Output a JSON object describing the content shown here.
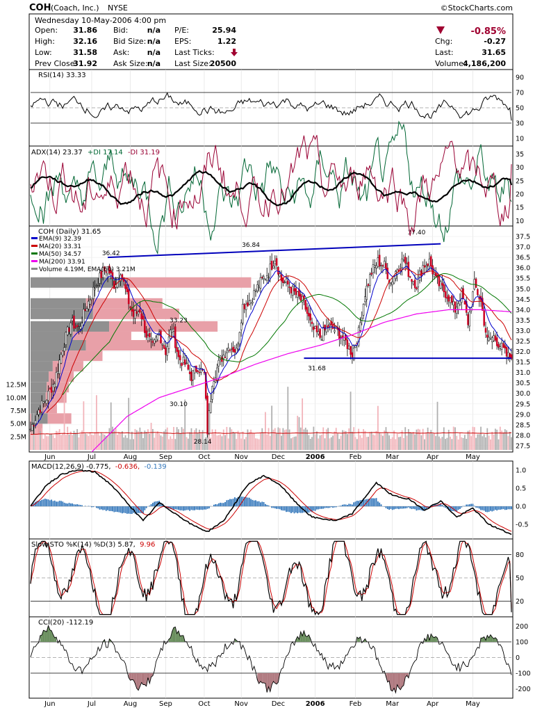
{
  "header": {
    "symbol": "COH",
    "company": "(Coach, Inc.)",
    "exchange": "NYSE",
    "copyright": "©StockCharts.com",
    "date": "Wednesday   10-May-2006  4:00 pm",
    "quote_col1": [
      [
        "Open:",
        "31.86"
      ],
      [
        "High:",
        "32.16"
      ],
      [
        "Low:",
        "31.58"
      ],
      [
        "Prev Close:",
        "31.92"
      ]
    ],
    "quote_col2": [
      [
        "Bid:",
        "n/a"
      ],
      [
        "Bid Size:",
        "n/a"
      ],
      [
        "Ask:",
        "n/a"
      ],
      [
        "Ask Size:",
        "n/a"
      ]
    ],
    "quote_col3": [
      [
        "P/E:",
        "25.94"
      ],
      [
        "EPS:",
        "1.22"
      ],
      [
        "Last Ticks:",
        ""
      ],
      [
        "Last Size:",
        "20500"
      ]
    ],
    "pct_change": "-0.85%",
    "quote_col4": [
      [
        "Chg:",
        "-0.27"
      ],
      [
        "Last:",
        "31.65"
      ],
      [
        "Volume:",
        "4,186,200"
      ]
    ],
    "down_color": "#a00030"
  },
  "panels": {
    "rsi_title": "RSI(14) 33.33",
    "adx": {
      "a": "ADX(14) 23.37",
      "b": "+DI 17.14",
      "c": "-DI 31.19"
    },
    "price_title": "COH (Daily) 31.65",
    "price_legend": [
      {
        "label": "EMA(9) 32.39",
        "color": "#0000cc"
      },
      {
        "label": "MA(20) 33.31",
        "color": "#cc0000"
      },
      {
        "label": "MA(50) 34.57",
        "color": "#007700"
      },
      {
        "label": "MA(200) 33.91",
        "color": "#ee00ee"
      },
      {
        "label": "Volume 4.19M, EMA(60) 3.21M",
        "color": "#888888"
      }
    ],
    "macd": {
      "a": "MACD(12,26,9) -0.775,",
      "b": "-0.636,",
      "c": "-0.139"
    },
    "sto": {
      "a": "Slow STO %K(14) %D(3) 5.87,",
      "b": "9.96"
    },
    "cci_title": "CCI(20) -112.19"
  },
  "x_labels": [
    "Jun",
    "Jul",
    "Aug",
    "Sep",
    "Oct",
    "Nov",
    "Dec",
    "2006",
    "Feb",
    "Mar",
    "Apr",
    "May"
  ],
  "annotations": [
    "36.42",
    "36.84",
    "37.40",
    "33.23",
    "30.10",
    "31.68",
    "28.14"
  ],
  "chart_data": {
    "type": "line",
    "title": "COH (Daily) 31.65",
    "x_labels": [
      "Jun",
      "Jul",
      "Aug",
      "Sep",
      "Oct",
      "Nov",
      "Dec",
      "2006",
      "Feb",
      "Mar",
      "Apr",
      "May"
    ],
    "price": {
      "ylim": [
        27.2,
        38.0
      ],
      "ticks": [
        "27.5",
        "28.0",
        "28.5",
        "29.0",
        "29.5",
        "30.0",
        "30.5",
        "31.0",
        "31.5",
        "32.0",
        "32.5",
        "33.0",
        "33.5",
        "34.0",
        "34.5",
        "35.0",
        "35.5",
        "36.0",
        "36.5",
        "37.0",
        "37.5"
      ],
      "close_anchors": [
        [
          0,
          28.3
        ],
        [
          5,
          29.2
        ],
        [
          10,
          29.8
        ],
        [
          15,
          30.6
        ],
        [
          20,
          32.2
        ],
        [
          25,
          33.4
        ],
        [
          30,
          33.1
        ],
        [
          35,
          34.2
        ],
        [
          40,
          35.1
        ],
        [
          45,
          35.8
        ],
        [
          48,
          36.0
        ],
        [
          52,
          35.2
        ],
        [
          56,
          35.9
        ],
        [
          60,
          34.6
        ],
        [
          64,
          33.7
        ],
        [
          68,
          34.0
        ],
        [
          72,
          32.8
        ],
        [
          76,
          32.2
        ],
        [
          80,
          32.9
        ],
        [
          84,
          32.0
        ],
        [
          88,
          33.2
        ],
        [
          92,
          31.7
        ],
        [
          96,
          31.4
        ],
        [
          100,
          30.8
        ],
        [
          104,
          31.3
        ],
        [
          108,
          30.9
        ],
        [
          110,
          28.2
        ],
        [
          113,
          30.6
        ],
        [
          118,
          31.6
        ],
        [
          124,
          32.3
        ],
        [
          128,
          32.0
        ],
        [
          132,
          34.2
        ],
        [
          137,
          34.5
        ],
        [
          142,
          35.2
        ],
        [
          148,
          35.8
        ],
        [
          152,
          36.5
        ],
        [
          156,
          35.4
        ],
        [
          160,
          35.2
        ],
        [
          164,
          34.8
        ],
        [
          170,
          34.3
        ],
        [
          175,
          33.1
        ],
        [
          180,
          32.7
        ],
        [
          185,
          33.2
        ],
        [
          190,
          33.0
        ],
        [
          195,
          32.6
        ],
        [
          200,
          31.9
        ],
        [
          204,
          32.9
        ],
        [
          208,
          34.8
        ],
        [
          212,
          35.8
        ],
        [
          216,
          36.3
        ],
        [
          220,
          36.1
        ],
        [
          224,
          35.3
        ],
        [
          228,
          36.0
        ],
        [
          232,
          36.4
        ],
        [
          236,
          35.6
        ],
        [
          240,
          35.2
        ],
        [
          244,
          36.1
        ],
        [
          248,
          36.3
        ],
        [
          252,
          35.4
        ],
        [
          256,
          35.0
        ],
        [
          260,
          34.6
        ],
        [
          264,
          34.0
        ],
        [
          268,
          34.8
        ],
        [
          272,
          33.4
        ],
        [
          276,
          35.2
        ],
        [
          280,
          34.4
        ],
        [
          284,
          32.5
        ],
        [
          288,
          32.7
        ],
        [
          292,
          32.3
        ],
        [
          296,
          31.8
        ],
        [
          299,
          31.65
        ]
      ],
      "ma200_anchors": [
        [
          38,
          27.2
        ],
        [
          60,
          28.9
        ],
        [
          80,
          29.8
        ],
        [
          100,
          30.3
        ],
        [
          120,
          30.8
        ],
        [
          140,
          31.4
        ],
        [
          160,
          31.9
        ],
        [
          180,
          32.3
        ],
        [
          200,
          32.8
        ],
        [
          220,
          33.4
        ],
        [
          240,
          33.8
        ],
        [
          260,
          34.0
        ],
        [
          280,
          34.0
        ],
        [
          299,
          33.9
        ]
      ],
      "volume_profile": [
        {
          "price": 35.3,
          "vol": 0.92
        },
        {
          "price": 34.3,
          "vol": 0.55
        },
        {
          "price": 33.8,
          "vol": 0.62
        },
        {
          "price": 33.2,
          "vol": 0.78
        },
        {
          "price": 32.7,
          "vol": 0.42
        },
        {
          "price": 32.3,
          "vol": 0.55
        },
        {
          "price": 31.8,
          "vol": 0.3
        },
        {
          "price": 31.3,
          "vol": 0.22
        },
        {
          "price": 30.8,
          "vol": 0.18
        },
        {
          "price": 30.3,
          "vol": 0.16
        },
        {
          "price": 29.8,
          "vol": 0.15
        },
        {
          "price": 29.3,
          "vol": 0.11
        },
        {
          "price": 28.8,
          "vol": 0.17
        },
        {
          "price": 28.3,
          "vol": 0.05
        }
      ],
      "trendlines": [
        [
          [
            48,
            36.5
          ],
          [
            255,
            37.15
          ]
        ],
        [
          [
            170,
            31.68
          ],
          [
            299,
            31.68
          ]
        ]
      ]
    },
    "volume": {
      "unit": "M",
      "ticks": [
        "2.5M",
        "5.0M",
        "7.5M",
        "10.0M",
        "12.5M"
      ],
      "max": 13
    },
    "rsi": {
      "ylim": [
        0,
        100
      ],
      "ticks": [
        "10",
        "30",
        "50",
        "70",
        "90"
      ],
      "last": 33.33
    },
    "adx": {
      "ylim": [
        8,
        38
      ],
      "ticks": [
        "10",
        "15",
        "20",
        "25",
        "30",
        "35"
      ],
      "adx": 23.37,
      "plus_di": 17.14,
      "minus_di": 31.19
    },
    "macd": {
      "ylim": [
        -0.9,
        1.25
      ],
      "ticks": [
        "-0.5",
        "0.0",
        "0.5",
        "1.0"
      ],
      "macd": -0.775,
      "signal": -0.636,
      "hist": -0.139,
      "anchors": [
        [
          0,
          0.0
        ],
        [
          10,
          0.6
        ],
        [
          20,
          0.9
        ],
        [
          30,
          1.0
        ],
        [
          40,
          0.95
        ],
        [
          50,
          0.6
        ],
        [
          60,
          0.1
        ],
        [
          70,
          -0.4
        ],
        [
          80,
          0.1
        ],
        [
          90,
          -0.2
        ],
        [
          100,
          -0.5
        ],
        [
          110,
          -0.7
        ],
        [
          120,
          -0.4
        ],
        [
          135,
          0.6
        ],
        [
          145,
          0.85
        ],
        [
          155,
          0.6
        ],
        [
          165,
          0.1
        ],
        [
          175,
          -0.3
        ],
        [
          190,
          -0.4
        ],
        [
          200,
          -0.2
        ],
        [
          215,
          0.65
        ],
        [
          225,
          0.3
        ],
        [
          235,
          0.2
        ],
        [
          245,
          -0.1
        ],
        [
          255,
          0.15
        ],
        [
          265,
          -0.3
        ],
        [
          275,
          -0.05
        ],
        [
          285,
          -0.5
        ],
        [
          299,
          -0.775
        ]
      ]
    },
    "sto": {
      "ylim": [
        0,
        100
      ],
      "ticks": [
        "20",
        "50",
        "80"
      ],
      "k": 5.87,
      "d": 9.96
    },
    "cci": {
      "ylim": [
        -260,
        260
      ],
      "ticks": [
        "-200",
        "-100",
        "0",
        "100",
        "200"
      ],
      "last": -112.19
    }
  }
}
